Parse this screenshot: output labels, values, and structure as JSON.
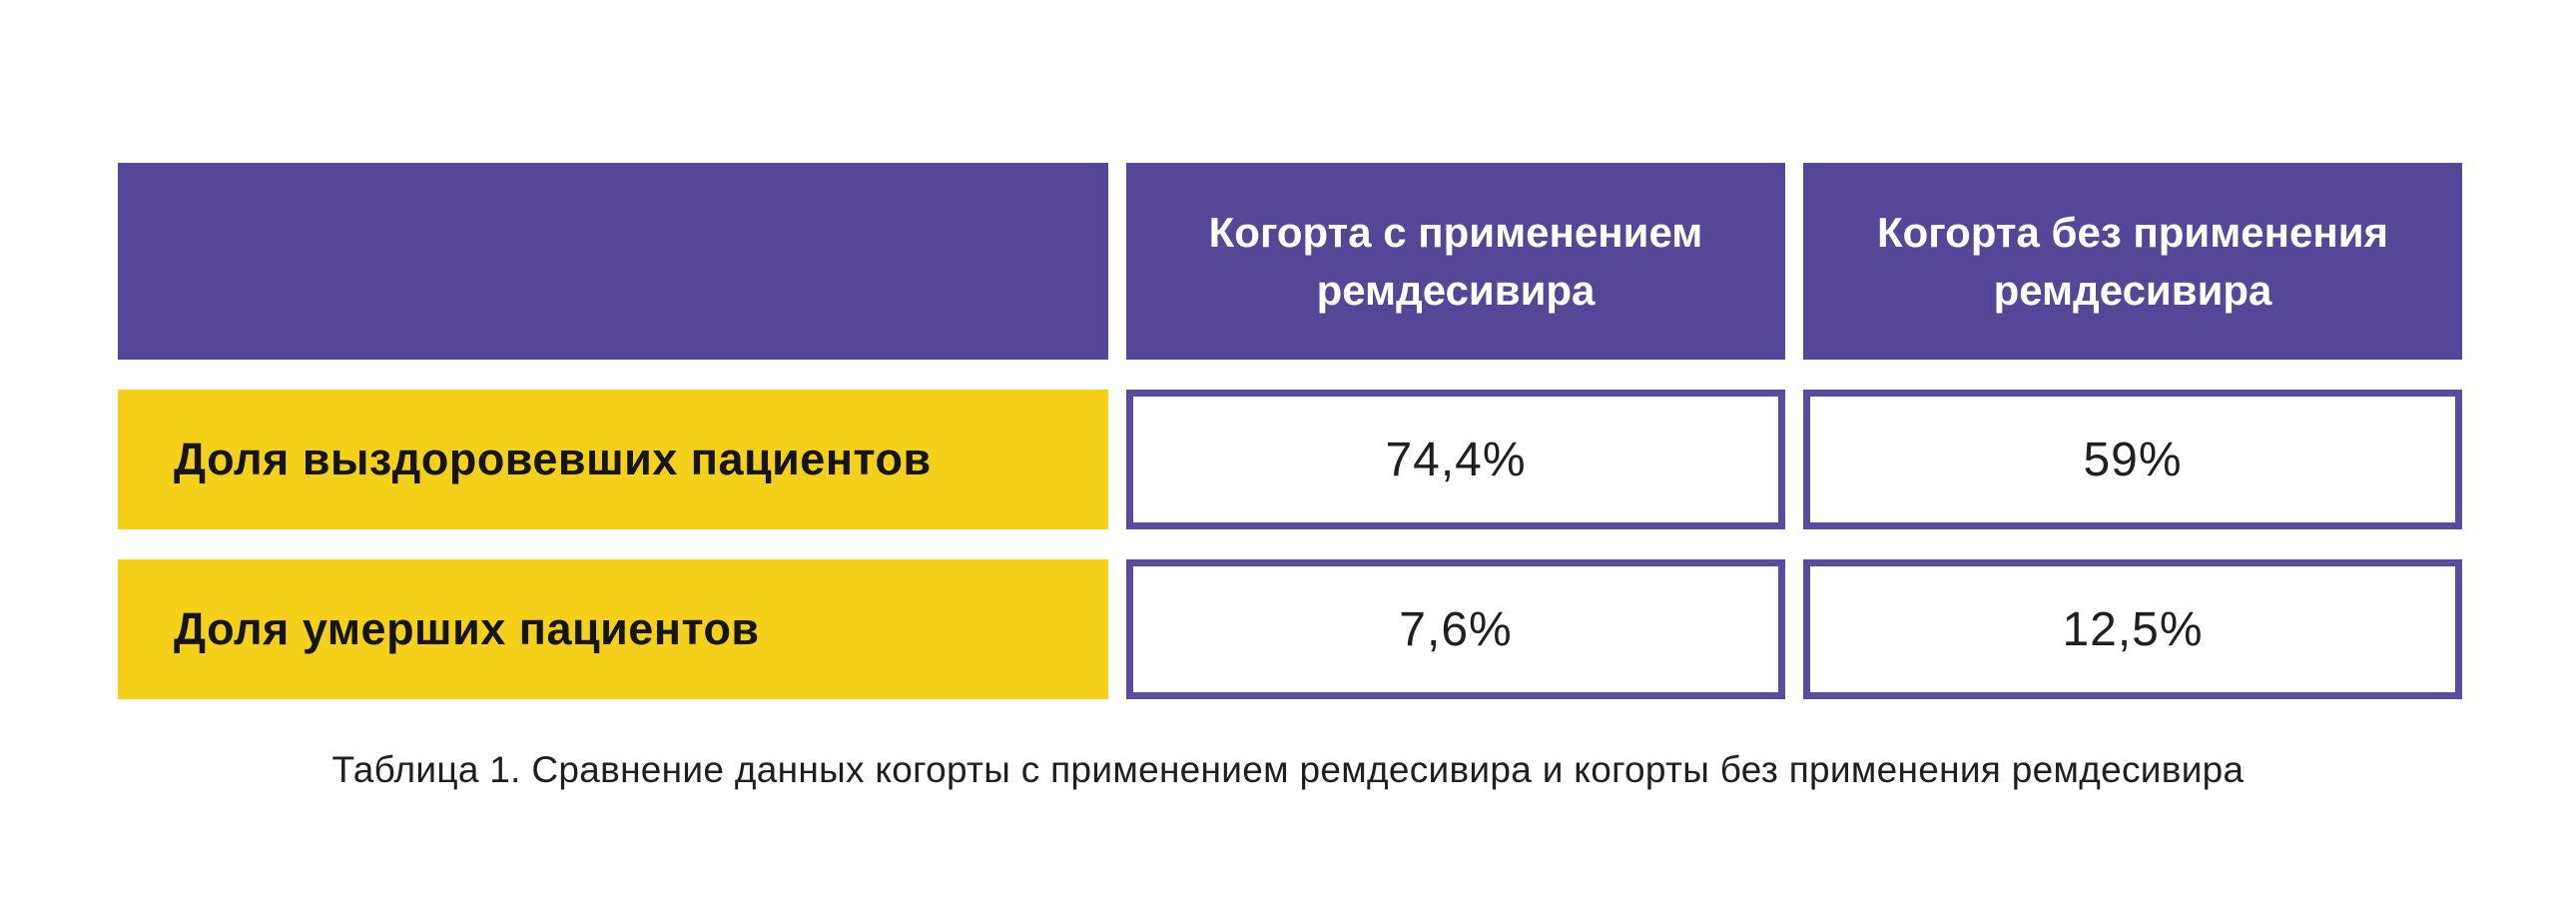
{
  "colors": {
    "page_bg": "#ffffff",
    "header_bg": "#564697",
    "header_text": "#ffffff",
    "label_bg": "#f5d01a",
    "label_text": "#151515",
    "value_border": "#5a4b9f",
    "value_text": "#1f1f1f",
    "caption_text": "#1f1f1f"
  },
  "table": {
    "corner_label": "",
    "col_headers": [
      "Когорта с применением ремдесивира",
      "Когорта без применения ремдесивира"
    ],
    "rows": [
      {
        "label": "Доля выздоровевших пациентов",
        "values": [
          "74,4%",
          "59%"
        ]
      },
      {
        "label": "Доля умерших пациентов",
        "values": [
          "7,6%",
          "12,5%"
        ]
      }
    ]
  },
  "caption": "Таблица 1. Сравнение данных когорты с применением ремдесивира и когорты без применения ремдесивира",
  "chart_data": {
    "type": "table",
    "title": "Таблица 1. Сравнение данных когорты с применением ремдесивира и когорты без применения ремдесивира",
    "columns": [
      "",
      "Когорта с применением ремдесивира",
      "Когорта без применения ремдесивира"
    ],
    "rows": [
      [
        "Доля выздоровевших пациентов",
        "74,4%",
        "59%"
      ],
      [
        "Доля умерших пациентов",
        "7,6%",
        "12,5%"
      ]
    ],
    "values_numeric": [
      {
        "metric": "Доля выздоровевших пациентов",
        "remdesivir_cohort_pct": 74.4,
        "no_remdesivir_cohort_pct": 59
      },
      {
        "metric": "Доля умерших пациентов",
        "remdesivir_cohort_pct": 7.6,
        "no_remdesivir_cohort_pct": 12.5
      }
    ],
    "layout": {
      "header_fill": "#564697",
      "row_label_fill": "#f5d01a",
      "value_cell_border": "#5a4b9f",
      "caption_position": "bottom-center"
    }
  }
}
